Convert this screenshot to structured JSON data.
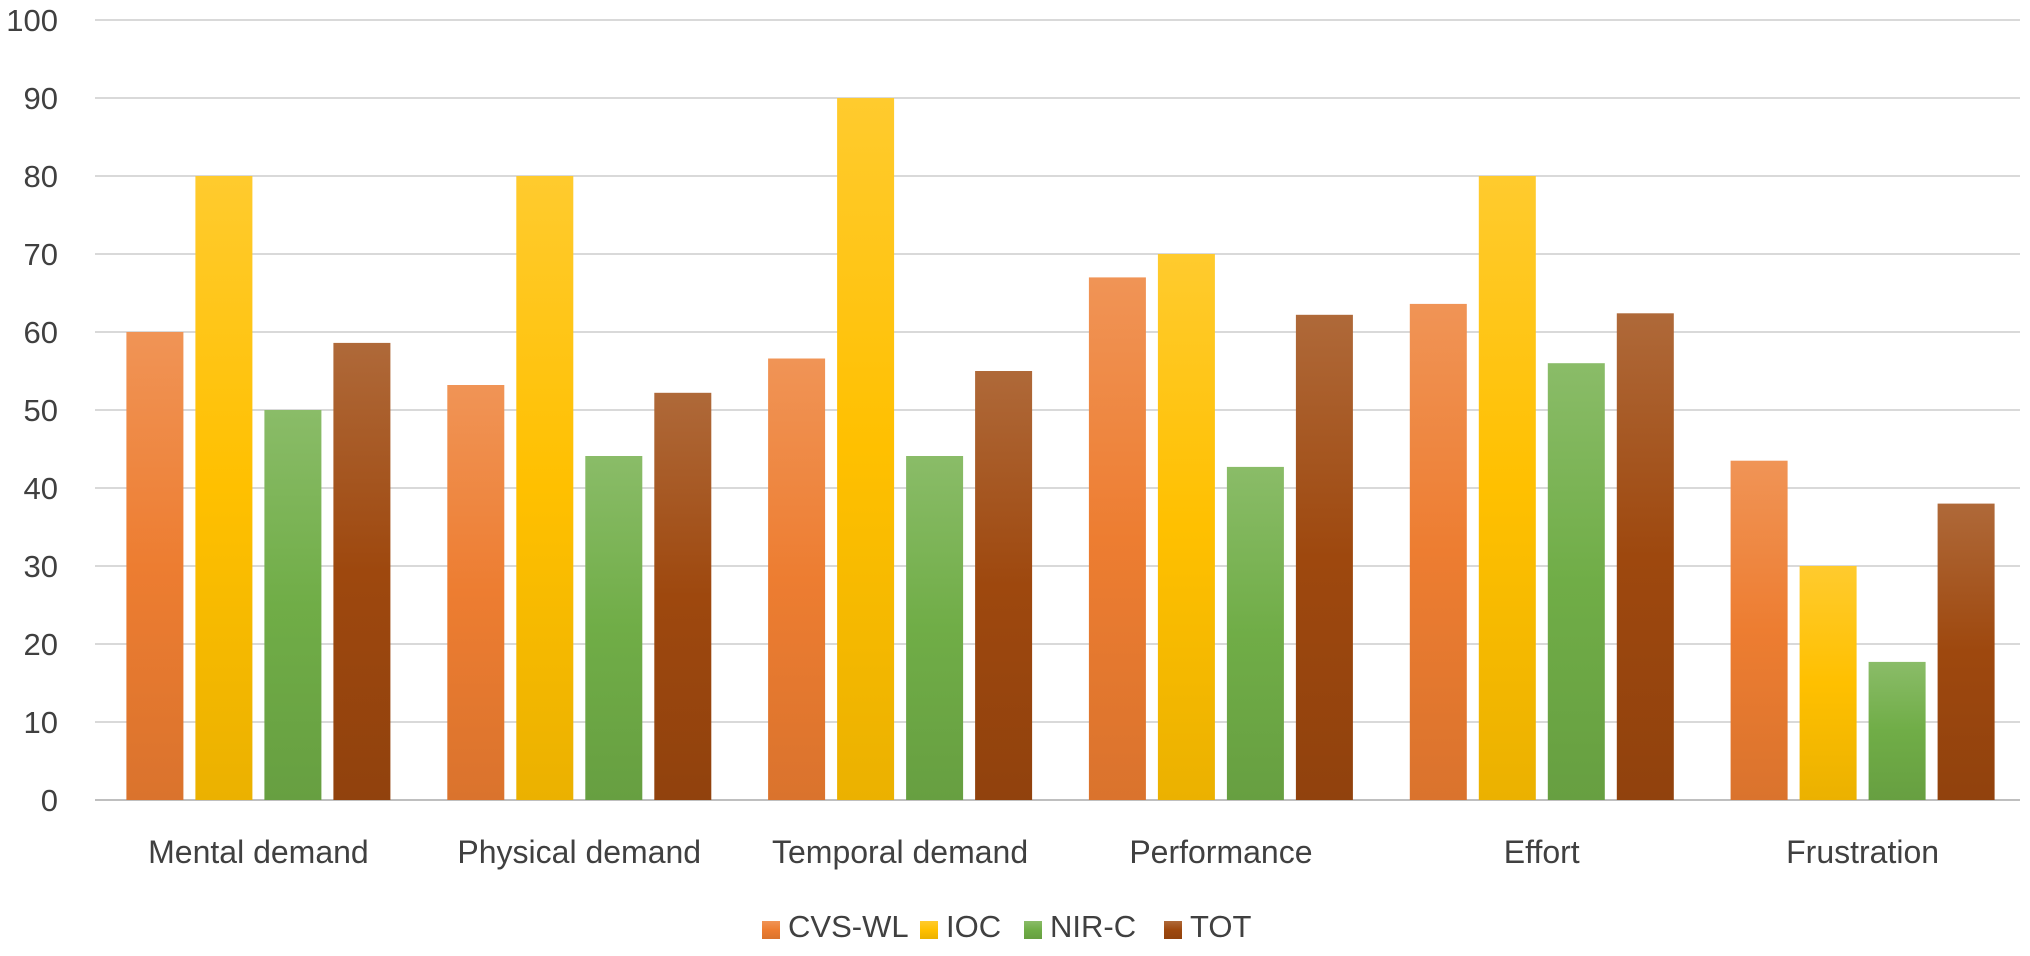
{
  "chart_data": {
    "type": "bar",
    "title": "",
    "xlabel": "",
    "ylabel": "",
    "ylim": [
      0,
      100
    ],
    "yticks": [
      0,
      10,
      20,
      30,
      40,
      50,
      60,
      70,
      80,
      90,
      100
    ],
    "grid": true,
    "legend_position": "bottom",
    "categories": [
      "Mental demand",
      "Physical demand",
      "Temporal demand",
      "Performance",
      "Effort",
      "Frustration"
    ],
    "series": [
      {
        "name": "CVS-WL",
        "color": "#ED7D31",
        "values": [
          60,
          53.2,
          56.6,
          67,
          63.6,
          43.5
        ]
      },
      {
        "name": "IOC",
        "color": "#FFC000",
        "values": [
          80,
          80,
          90,
          70,
          80,
          30
        ]
      },
      {
        "name": "NIR-C",
        "color": "#70AD47",
        "values": [
          50,
          44.1,
          44.1,
          42.7,
          56,
          17.7
        ]
      },
      {
        "name": "TOT",
        "color": "#9E480E",
        "values": [
          58.6,
          52.2,
          55,
          62.2,
          62.4,
          38
        ]
      }
    ]
  }
}
